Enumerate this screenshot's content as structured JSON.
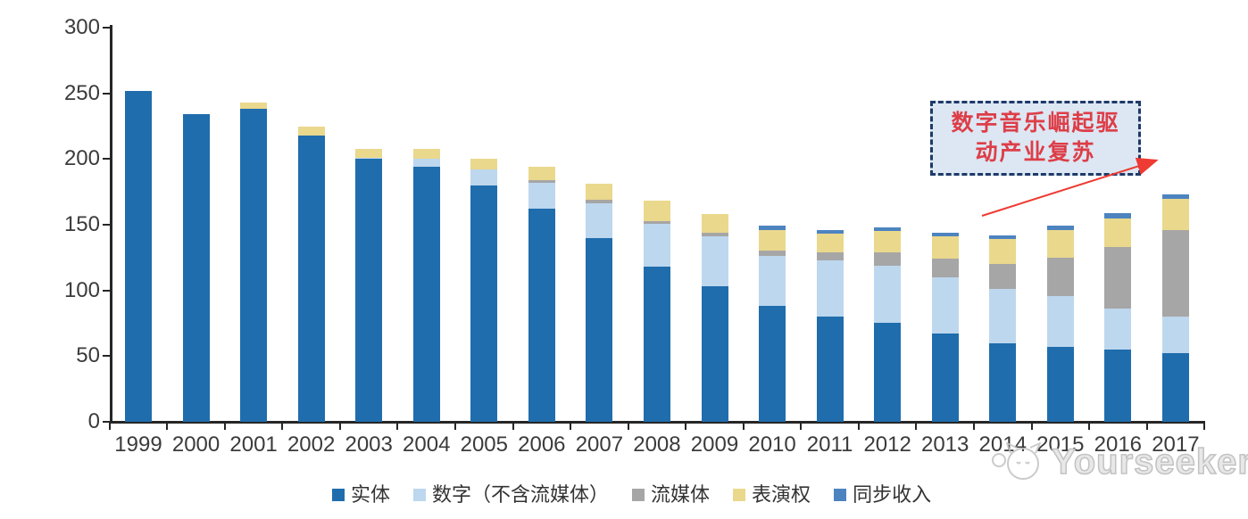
{
  "chart_data": {
    "type": "bar",
    "stacked": true,
    "categories": [
      "1999",
      "2000",
      "2001",
      "2002",
      "2003",
      "2004",
      "2005",
      "2006",
      "2007",
      "2008",
      "2009",
      "2010",
      "2011",
      "2012",
      "2013",
      "2014",
      "2015",
      "2016",
      "2017"
    ],
    "series": [
      {
        "name": "实体",
        "color": "#1F6DAD",
        "values": [
          252,
          234,
          238,
          218,
          200,
          194,
          180,
          162,
          140,
          118,
          103,
          88,
          80,
          75,
          67,
          60,
          57,
          55,
          52
        ]
      },
      {
        "name": "数字（不含流媒体）",
        "color": "#BDD7EE",
        "values": [
          0,
          0,
          0,
          0,
          1,
          6,
          12,
          20,
          26,
          33,
          38,
          38,
          43,
          44,
          43,
          41,
          39,
          31,
          28
        ]
      },
      {
        "name": "流媒体",
        "color": "#A6A6A6",
        "values": [
          0,
          0,
          0,
          0,
          0,
          0,
          0,
          2,
          3,
          2,
          3,
          4,
          6,
          10,
          14,
          19,
          29,
          47,
          66
        ]
      },
      {
        "name": "表演权",
        "color": "#EAD88D",
        "values": [
          0,
          0,
          5,
          7,
          7,
          8,
          8,
          10,
          12,
          15,
          14,
          16,
          14,
          16,
          17,
          19,
          21,
          22,
          24
        ]
      },
      {
        "name": "同步收入",
        "color": "#4D84C0",
        "values": [
          0,
          0,
          0,
          0,
          0,
          0,
          0,
          0,
          0,
          0,
          0,
          3,
          3,
          3,
          3,
          3,
          3,
          4,
          3
        ]
      }
    ],
    "ylim": [
      0,
      300
    ],
    "yticks": [
      0,
      50,
      100,
      150,
      200,
      250,
      300
    ],
    "grid": false,
    "legend_position": "bottom"
  },
  "annotation": {
    "lines": [
      "数字音乐崛起驱",
      "动产业复苏"
    ],
    "text_color": "#DD3E48",
    "fill_color": "#DCE7F3",
    "border_color": "#1E3A68",
    "arrow_color": "#EE3B33"
  },
  "watermark": {
    "text": "Yourseeker"
  },
  "axis": {
    "line_color": "#262626",
    "label_color": "#3B3B3B"
  }
}
